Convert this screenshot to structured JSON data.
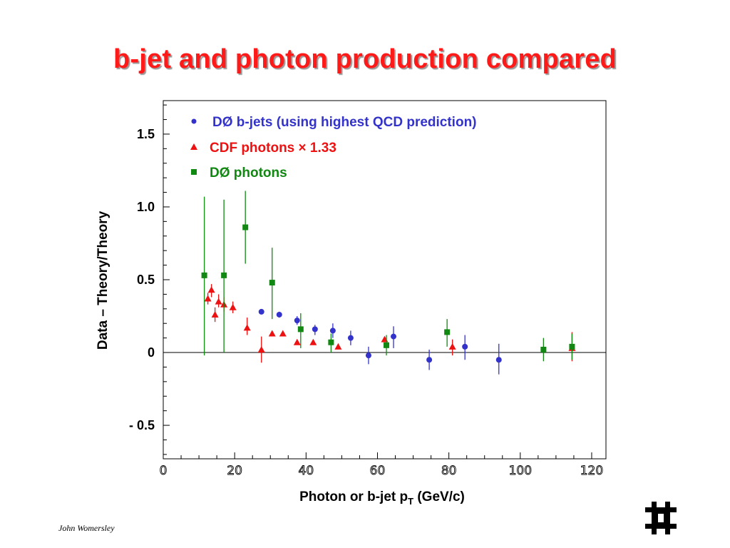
{
  "slide": {
    "title": "b-jet and photon production compared",
    "author": "John Womersley"
  },
  "colors": {
    "title": "#ff1a1a",
    "bjets": "#3333cc",
    "cdf": "#ee1111",
    "d0photons": "#118811",
    "axis": "#000000"
  },
  "icons": {
    "logo": "fermilab-logo"
  },
  "chart_data": {
    "type": "scatter",
    "title": "",
    "xlabel": "Photon or b-jet p",
    "xlabel_sub": "T",
    "xlabel_suffix": " (GeV/c)",
    "ylabel": "Data – Theory/Theory",
    "xlim": [
      0,
      124
    ],
    "ylim": [
      -0.73,
      1.73
    ],
    "x_ticks": [
      {
        "v": 0,
        "label": "0"
      },
      {
        "v": 20,
        "label": "20"
      },
      {
        "v": 40,
        "label": "40"
      },
      {
        "v": 60,
        "label": "60"
      },
      {
        "v": 80,
        "label": "80"
      },
      {
        "v": 100,
        "label": "100"
      },
      {
        "v": 120,
        "label": "120"
      }
    ],
    "y_ticks": [
      {
        "v": 1.5,
        "label": "1.5"
      },
      {
        "v": 1.0,
        "label": "1.0"
      },
      {
        "v": 0.5,
        "label": "0.5"
      },
      {
        "v": 0,
        "label": "0"
      },
      {
        "v": -0.5,
        "label": "- 0.5"
      }
    ],
    "zero_line": 0,
    "legend_position": "top-left",
    "series": [
      {
        "name": "DØ b-jets (using highest QCD prediction)",
        "legend_symbol": "•",
        "marker": "circle",
        "color": "#3333cc",
        "points": [
          {
            "x": 27.5,
            "y": 0.28,
            "lo": 0.28,
            "hi": 0.28
          },
          {
            "x": 32.5,
            "y": 0.26,
            "lo": 0.24,
            "hi": 0.28
          },
          {
            "x": 37.5,
            "y": 0.22,
            "lo": 0.19,
            "hi": 0.25
          },
          {
            "x": 42.5,
            "y": 0.16,
            "lo": 0.12,
            "hi": 0.19
          },
          {
            "x": 47.5,
            "y": 0.15,
            "lo": 0.1,
            "hi": 0.2
          },
          {
            "x": 52.5,
            "y": 0.1,
            "lo": 0.05,
            "hi": 0.15
          },
          {
            "x": 57.5,
            "y": -0.02,
            "lo": -0.08,
            "hi": 0.04
          },
          {
            "x": 64.5,
            "y": 0.11,
            "lo": 0.03,
            "hi": 0.18
          },
          {
            "x": 74.5,
            "y": -0.05,
            "lo": -0.12,
            "hi": 0.02
          },
          {
            "x": 84.5,
            "y": 0.04,
            "lo": -0.05,
            "hi": 0.12
          },
          {
            "x": 94.0,
            "y": -0.05,
            "lo": -0.15,
            "hi": 0.06
          }
        ]
      },
      {
        "name": "CDF photons × 1.33",
        "legend_symbol": "▲",
        "marker": "triangle",
        "color": "#ee1111",
        "points": [
          {
            "x": 12.5,
            "y": 0.37,
            "lo": 0.33,
            "hi": 0.41
          },
          {
            "x": 13.5,
            "y": 0.43,
            "lo": 0.38,
            "hi": 0.47
          },
          {
            "x": 14.5,
            "y": 0.26,
            "lo": 0.21,
            "hi": 0.31
          },
          {
            "x": 15.5,
            "y": 0.35,
            "lo": 0.31,
            "hi": 0.4
          },
          {
            "x": 17.0,
            "y": 0.33,
            "lo": 0.28,
            "hi": 0.38
          },
          {
            "x": 19.5,
            "y": 0.31,
            "lo": 0.27,
            "hi": 0.35
          },
          {
            "x": 23.5,
            "y": 0.17,
            "lo": 0.12,
            "hi": 0.24
          },
          {
            "x": 27.5,
            "y": 0.02,
            "lo": -0.07,
            "hi": 0.11
          },
          {
            "x": 30.5,
            "y": 0.13,
            "lo": 0.13,
            "hi": 0.13
          },
          {
            "x": 33.5,
            "y": 0.13,
            "lo": 0.13,
            "hi": 0.13
          },
          {
            "x": 37.5,
            "y": 0.07,
            "lo": 0.07,
            "hi": 0.07
          },
          {
            "x": 42.0,
            "y": 0.07,
            "lo": 0.07,
            "hi": 0.07
          },
          {
            "x": 49.0,
            "y": 0.04,
            "lo": 0.04,
            "hi": 0.04
          },
          {
            "x": 62.0,
            "y": 0.09,
            "lo": 0.09,
            "hi": 0.09
          },
          {
            "x": 81.0,
            "y": 0.04,
            "lo": -0.02,
            "hi": 0.09
          },
          {
            "x": 114.5,
            "y": 0.03,
            "lo": -0.06,
            "hi": 0.14
          }
        ]
      },
      {
        "name": "DØ photons",
        "legend_symbol": "■",
        "marker": "square",
        "color": "#118811",
        "points": [
          {
            "x": 11.5,
            "y": 0.53,
            "lo": -0.02,
            "hi": 1.07
          },
          {
            "x": 17.0,
            "y": 0.53,
            "lo": 0.0,
            "hi": 1.05
          },
          {
            "x": 23.0,
            "y": 0.86,
            "lo": 0.61,
            "hi": 1.11
          },
          {
            "x": 30.5,
            "y": 0.48,
            "lo": 0.23,
            "hi": 0.72
          },
          {
            "x": 38.5,
            "y": 0.16,
            "lo": 0.03,
            "hi": 0.27
          },
          {
            "x": 47.0,
            "y": 0.07,
            "lo": 0.0,
            "hi": 0.13
          },
          {
            "x": 62.5,
            "y": 0.05,
            "lo": -0.02,
            "hi": 0.12
          },
          {
            "x": 79.5,
            "y": 0.14,
            "lo": 0.04,
            "hi": 0.23
          },
          {
            "x": 106.5,
            "y": 0.02,
            "lo": -0.06,
            "hi": 0.1
          },
          {
            "x": 114.5,
            "y": 0.04,
            "lo": -0.05,
            "hi": 0.13
          }
        ]
      }
    ]
  }
}
